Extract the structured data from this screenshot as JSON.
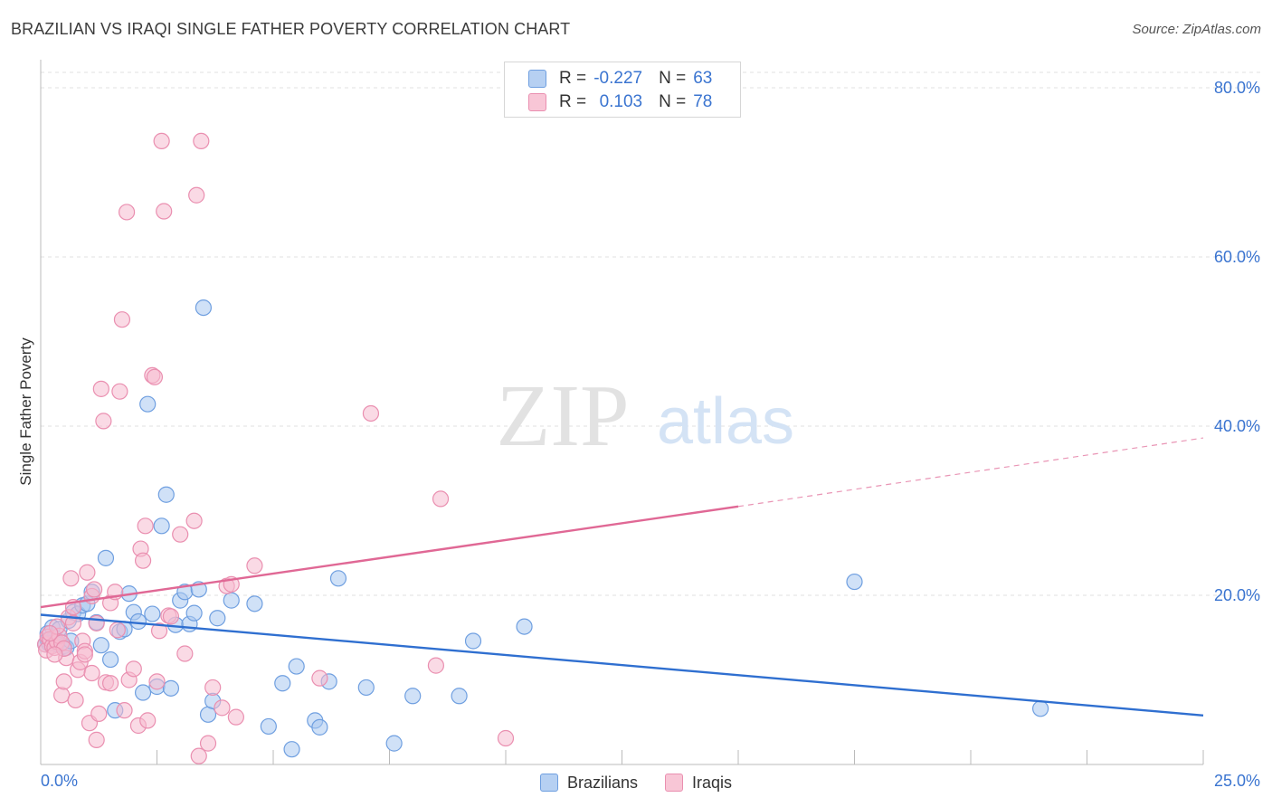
{
  "title": "BRAZILIAN VS IRAQI SINGLE FATHER POVERTY CORRELATION CHART",
  "source": "Source: ZipAtlas.com",
  "watermark": {
    "zip": "ZIP",
    "atlas": "atlas"
  },
  "colors": {
    "blue_fill": "#a9c8f0",
    "blue_stroke": "#6f9fe0",
    "blue_line": "#2f6fd0",
    "pink_fill": "#f6bcd0",
    "pink_stroke": "#ea8fb0",
    "pink_line": "#e06895",
    "axis_text": "#3a74d0",
    "grid": "#e0e0e0"
  },
  "stats": {
    "r_label": "R =",
    "n_label": "N =",
    "rows": [
      {
        "series": "Brazilians",
        "r": "-0.227",
        "n": "63"
      },
      {
        "series": "Iraqis",
        "r": "0.103",
        "n": "78"
      }
    ]
  },
  "legend": [
    "Brazilians",
    "Iraqis"
  ],
  "chart_data": {
    "type": "scatter",
    "title": "BRAZILIAN VS IRAQI SINGLE FATHER POVERTY CORRELATION CHART",
    "xlabel": "",
    "ylabel": "Single Father Poverty",
    "xlim": [
      0,
      25
    ],
    "ylim": [
      0,
      80
    ],
    "x_tick_labels": [
      "0.0%",
      "25.0%"
    ],
    "y_ticks": [
      20,
      40,
      60,
      80
    ],
    "y_tick_labels": [
      "20.0%",
      "40.0%",
      "60.0%",
      "80.0%"
    ],
    "grid": true,
    "legend_position": "bottom",
    "series": [
      {
        "name": "Brazilians",
        "color": "blue",
        "r": -0.227,
        "n": 63,
        "trend": {
          "x0": 0,
          "y0": 17.7,
          "x1": 25,
          "y1": 5.8
        },
        "points": [
          [
            0.15,
            15.5
          ],
          [
            0.2,
            14.5
          ],
          [
            0.25,
            16.2
          ],
          [
            0.3,
            15.0
          ],
          [
            0.35,
            14.2
          ],
          [
            0.4,
            16.0
          ],
          [
            0.5,
            14.0
          ],
          [
            0.6,
            17.0
          ],
          [
            0.7,
            18.0
          ],
          [
            0.8,
            17.8
          ],
          [
            0.9,
            18.8
          ],
          [
            1.0,
            19.0
          ],
          [
            1.1,
            20.4
          ],
          [
            1.2,
            16.8
          ],
          [
            1.3,
            14.1
          ],
          [
            1.4,
            24.4
          ],
          [
            1.5,
            12.4
          ],
          [
            1.6,
            6.4
          ],
          [
            1.7,
            15.7
          ],
          [
            1.8,
            16.0
          ],
          [
            1.9,
            20.2
          ],
          [
            2.0,
            18.0
          ],
          [
            2.1,
            16.9
          ],
          [
            2.2,
            8.5
          ],
          [
            2.3,
            42.6
          ],
          [
            2.4,
            17.8
          ],
          [
            2.5,
            9.2
          ],
          [
            2.6,
            28.2
          ],
          [
            2.7,
            31.9
          ],
          [
            2.8,
            9.0
          ],
          [
            2.9,
            16.5
          ],
          [
            3.0,
            19.4
          ],
          [
            3.1,
            20.4
          ],
          [
            3.2,
            16.6
          ],
          [
            3.3,
            17.9
          ],
          [
            3.4,
            20.7
          ],
          [
            3.5,
            54.0
          ],
          [
            3.6,
            5.9
          ],
          [
            3.7,
            7.5
          ],
          [
            3.8,
            17.3
          ],
          [
            4.1,
            19.4
          ],
          [
            4.6,
            19.0
          ],
          [
            4.9,
            4.5
          ],
          [
            5.2,
            9.6
          ],
          [
            5.4,
            1.8
          ],
          [
            5.5,
            11.6
          ],
          [
            5.9,
            5.2
          ],
          [
            6.0,
            4.4
          ],
          [
            6.2,
            9.8
          ],
          [
            6.4,
            22.0
          ],
          [
            7.0,
            9.1
          ],
          [
            7.6,
            2.5
          ],
          [
            8.0,
            8.1
          ],
          [
            9.0,
            8.1
          ],
          [
            9.3,
            14.6
          ],
          [
            10.4,
            16.3
          ],
          [
            17.5,
            21.6
          ],
          [
            21.5,
            6.6
          ],
          [
            0.1,
            14.2
          ],
          [
            0.15,
            14.7
          ],
          [
            0.18,
            14.3
          ],
          [
            0.55,
            13.8
          ],
          [
            0.65,
            14.6
          ]
        ]
      },
      {
        "name": "Iraqis",
        "color": "pink",
        "r": 0.103,
        "n": 78,
        "trend": {
          "x0": 0,
          "y0": 18.6,
          "x1": 15,
          "y1": 30.5,
          "dash_to_x": 25,
          "dash_to_y": 38.6
        },
        "points": [
          [
            0.1,
            14.2
          ],
          [
            0.12,
            13.5
          ],
          [
            0.15,
            15.1
          ],
          [
            0.2,
            14.8
          ],
          [
            0.25,
            14.0
          ],
          [
            0.3,
            13.8
          ],
          [
            0.35,
            14.5
          ],
          [
            0.4,
            15.2
          ],
          [
            0.45,
            8.2
          ],
          [
            0.5,
            9.8
          ],
          [
            0.55,
            12.6
          ],
          [
            0.6,
            17.4
          ],
          [
            0.65,
            22.0
          ],
          [
            0.7,
            16.7
          ],
          [
            0.75,
            7.6
          ],
          [
            0.8,
            11.2
          ],
          [
            0.85,
            12.1
          ],
          [
            0.9,
            14.6
          ],
          [
            0.95,
            13.4
          ],
          [
            1.0,
            22.7
          ],
          [
            1.05,
            4.9
          ],
          [
            1.1,
            19.9
          ],
          [
            1.15,
            20.7
          ],
          [
            1.2,
            16.7
          ],
          [
            1.3,
            44.4
          ],
          [
            1.35,
            40.6
          ],
          [
            1.4,
            9.7
          ],
          [
            1.5,
            19.1
          ],
          [
            1.6,
            20.4
          ],
          [
            1.65,
            15.9
          ],
          [
            1.7,
            44.1
          ],
          [
            1.75,
            52.6
          ],
          [
            1.8,
            6.4
          ],
          [
            1.85,
            65.3
          ],
          [
            1.9,
            10.0
          ],
          [
            2.0,
            11.3
          ],
          [
            2.1,
            4.6
          ],
          [
            2.15,
            25.5
          ],
          [
            2.2,
            24.1
          ],
          [
            2.25,
            28.2
          ],
          [
            2.3,
            5.2
          ],
          [
            2.4,
            46.0
          ],
          [
            2.45,
            45.8
          ],
          [
            2.5,
            9.8
          ],
          [
            2.55,
            15.8
          ],
          [
            2.6,
            73.7
          ],
          [
            2.65,
            65.4
          ],
          [
            2.75,
            17.6
          ],
          [
            2.8,
            17.5
          ],
          [
            3.0,
            27.2
          ],
          [
            3.1,
            13.1
          ],
          [
            3.3,
            28.8
          ],
          [
            3.35,
            67.3
          ],
          [
            3.4,
            1.0
          ],
          [
            3.45,
            73.7
          ],
          [
            3.6,
            2.5
          ],
          [
            3.7,
            9.1
          ],
          [
            3.9,
            6.7
          ],
          [
            4.0,
            21.1
          ],
          [
            4.1,
            21.3
          ],
          [
            4.2,
            5.6
          ],
          [
            4.6,
            23.5
          ],
          [
            6.0,
            10.2
          ],
          [
            7.1,
            41.5
          ],
          [
            8.5,
            11.7
          ],
          [
            8.6,
            31.4
          ],
          [
            10.0,
            3.1
          ],
          [
            1.2,
            2.9
          ],
          [
            0.35,
            16.3
          ],
          [
            0.45,
            14.4
          ],
          [
            0.5,
            13.7
          ],
          [
            0.7,
            18.6
          ],
          [
            0.95,
            13.0
          ],
          [
            1.1,
            10.8
          ],
          [
            1.25,
            6.0
          ],
          [
            0.2,
            15.5
          ],
          [
            0.3,
            13.0
          ],
          [
            1.5,
            9.6
          ]
        ]
      }
    ]
  }
}
